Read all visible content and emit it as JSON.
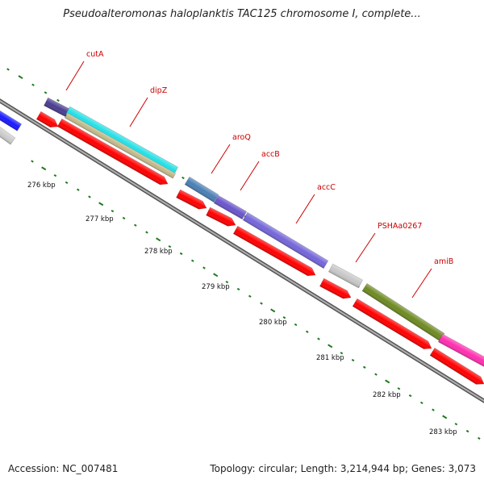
{
  "title": "Pseudoalteromonas haloplanktis TAC125 chromosome I, complete...",
  "footer": {
    "accession": "Accession: NC_007481",
    "summary": "Topology: circular; Length: 3,214,944 bp; Genes: 3,073"
  },
  "colors": {
    "backbone": "#8a8a8a",
    "ticks": "#1f7a1f",
    "gene_label": "#cc0000",
    "feature_arrow": "#ff0000"
  },
  "ruler": [
    "276 kbp",
    "277 kbp",
    "278 kbp",
    "279 kbp",
    "280 kbp",
    "281 kbp",
    "282 kbp",
    "283 kbp"
  ],
  "genes": [
    {
      "name": "cutA",
      "color": "#4b3d8f"
    },
    {
      "name": "dipZ",
      "color": "#22e0e6"
    },
    {
      "name": "aroQ",
      "color": "#4a7fb5"
    },
    {
      "name": "accB",
      "color": "#6a55cc"
    },
    {
      "name": "accC",
      "color": "#7466d9"
    },
    {
      "name": "PSHAa0267",
      "color": "#c8c8c8"
    },
    {
      "name": "amiB",
      "color": "#6e8a22"
    }
  ]
}
